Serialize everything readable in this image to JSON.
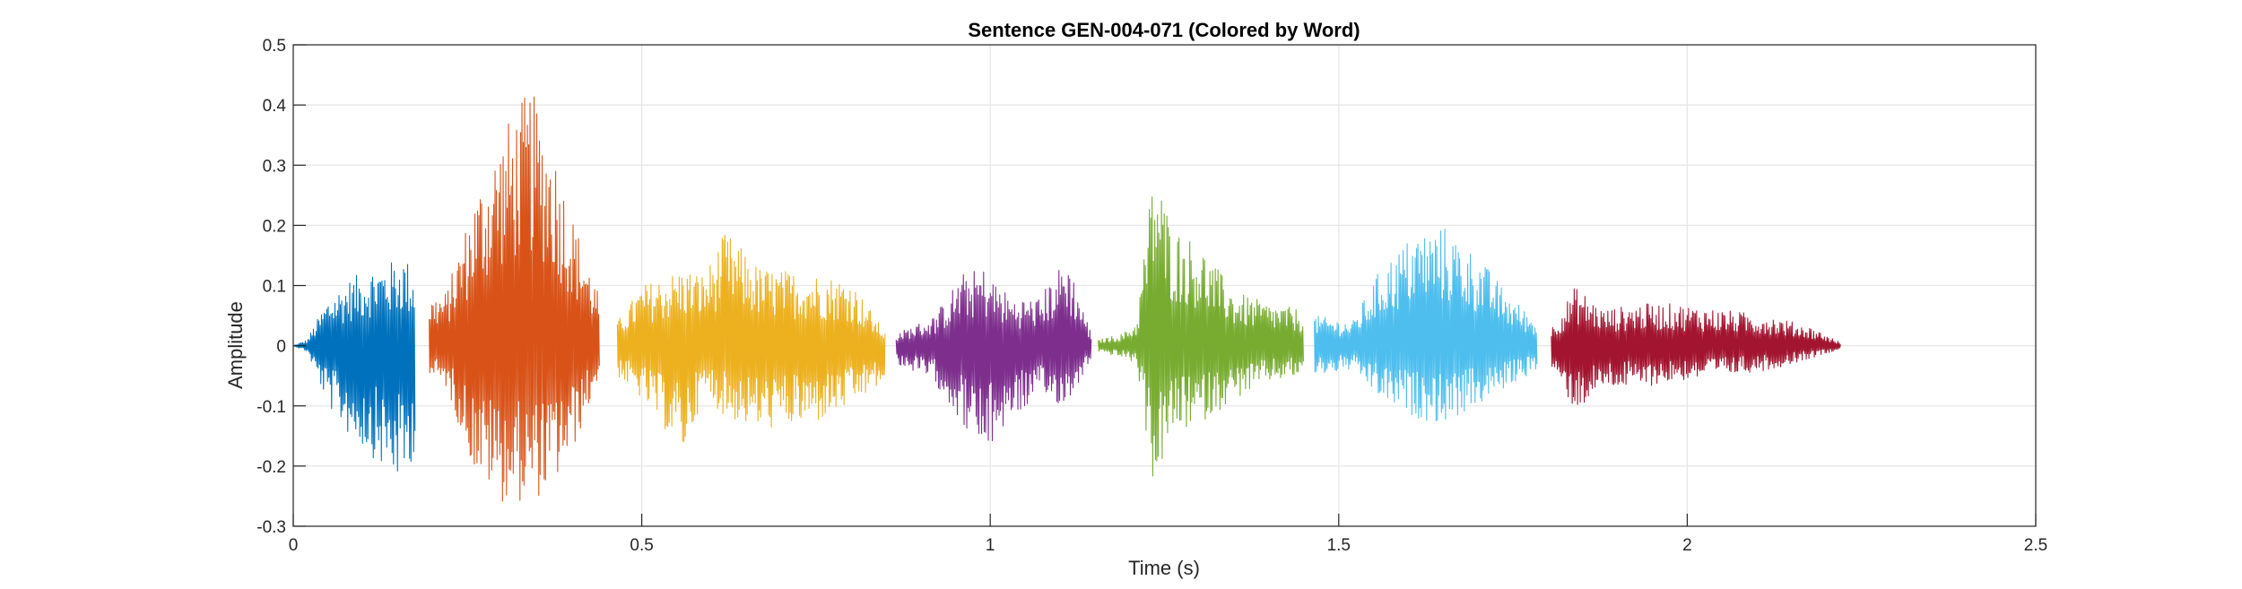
{
  "chart_data": {
    "type": "line",
    "title": "Sentence GEN-004-071 (Colored by Word)",
    "xlabel": "Time (s)",
    "ylabel": "Amplitude",
    "xlim": [
      0,
      2.5
    ],
    "ylim": [
      -0.3,
      0.5
    ],
    "xticks": [
      0,
      0.5,
      1,
      1.5,
      2,
      2.5
    ],
    "xtick_labels": [
      "0",
      "0.5",
      "1",
      "1.5",
      "2",
      "2.5"
    ],
    "yticks": [
      -0.3,
      -0.2,
      -0.1,
      0,
      0.1,
      0.2,
      0.3,
      0.4,
      0.5
    ],
    "ytick_labels": [
      "-0.3",
      "-0.2",
      "-0.1",
      "0",
      "0.1",
      "0.2",
      "0.3",
      "0.4",
      "0.5"
    ],
    "grid": true,
    "legend": "none",
    "series": [
      {
        "color": "#0072BD",
        "x": [
          0.0,
          0.02,
          0.05,
          0.08,
          0.11,
          0.14,
          0.16,
          0.175
        ],
        "upper": [
          0.0,
          0.01,
          0.08,
          0.11,
          0.13,
          0.14,
          0.15,
          0.12
        ],
        "lower": [
          0.0,
          -0.01,
          -0.1,
          -0.15,
          -0.18,
          -0.22,
          -0.23,
          -0.17
        ]
      },
      {
        "color": "#D95319",
        "x": [
          0.195,
          0.22,
          0.26,
          0.3,
          0.34,
          0.37,
          0.4,
          0.44
        ],
        "upper": [
          0.08,
          0.09,
          0.25,
          0.36,
          0.43,
          0.35,
          0.22,
          0.08
        ],
        "lower": [
          -0.05,
          -0.07,
          -0.21,
          -0.26,
          -0.26,
          -0.24,
          -0.18,
          -0.05
        ]
      },
      {
        "color": "#EDB120",
        "x": [
          0.465,
          0.5,
          0.56,
          0.59,
          0.62,
          0.67,
          0.75,
          0.8,
          0.85
        ],
        "upper": [
          0.04,
          0.1,
          0.13,
          0.12,
          0.19,
          0.13,
          0.12,
          0.11,
          0.02
        ],
        "lower": [
          -0.05,
          -0.09,
          -0.18,
          -0.08,
          -0.12,
          -0.14,
          -0.13,
          -0.1,
          -0.06
        ]
      },
      {
        "color": "#7E2F8E",
        "x": [
          0.865,
          0.92,
          0.96,
          0.99,
          1.03,
          1.07,
          1.11,
          1.145
        ],
        "upper": [
          0.02,
          0.05,
          0.12,
          0.13,
          0.08,
          0.08,
          0.15,
          0.02
        ],
        "lower": [
          -0.03,
          -0.06,
          -0.13,
          -0.19,
          -0.12,
          -0.09,
          -0.1,
          -0.02
        ]
      },
      {
        "color": "#77AC30",
        "x": [
          1.155,
          1.19,
          1.21,
          1.235,
          1.26,
          1.3,
          1.35,
          1.4,
          1.45
        ],
        "upper": [
          0.01,
          0.02,
          0.04,
          0.31,
          0.2,
          0.17,
          0.09,
          0.07,
          0.06
        ],
        "lower": [
          -0.01,
          -0.02,
          -0.03,
          -0.24,
          -0.15,
          -0.13,
          -0.09,
          -0.06,
          -0.05
        ]
      },
      {
        "color": "#4DBEEE",
        "x": [
          1.465,
          1.52,
          1.56,
          1.61,
          1.65,
          1.7,
          1.74,
          1.785
        ],
        "upper": [
          0.05,
          0.04,
          0.13,
          0.19,
          0.2,
          0.15,
          0.09,
          0.04
        ],
        "lower": [
          -0.05,
          -0.04,
          -0.09,
          -0.12,
          -0.13,
          -0.1,
          -0.07,
          -0.04
        ]
      },
      {
        "color": "#A2142F",
        "x": [
          1.805,
          1.84,
          1.88,
          1.93,
          1.98,
          2.05,
          2.12,
          2.18,
          2.22
        ],
        "upper": [
          0.03,
          0.1,
          0.06,
          0.07,
          0.07,
          0.06,
          0.05,
          0.03,
          0.005
        ],
        "lower": [
          -0.04,
          -0.11,
          -0.07,
          -0.07,
          -0.06,
          -0.05,
          -0.04,
          -0.02,
          -0.005
        ]
      }
    ]
  }
}
